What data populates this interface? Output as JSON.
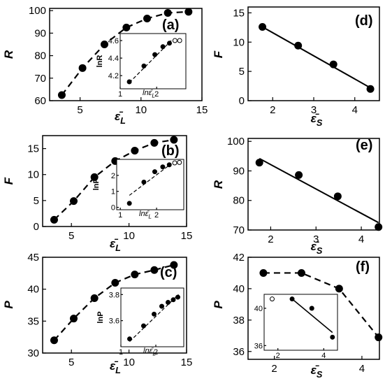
{
  "chart_data": [
    {
      "panel": "(a)",
      "type": "line",
      "xlabel": "ε̄_L",
      "ylabel": "R",
      "xlim": [
        2.5,
        15
      ],
      "ylim": [
        60,
        101
      ],
      "xticks": [
        5,
        10,
        15
      ],
      "yticks": [
        60,
        70,
        80,
        90,
        100
      ],
      "series": [
        {
          "style": "dashed-with-filled-markers",
          "x": [
            3.5,
            5.2,
            7.0,
            8.8,
            10.5,
            12.2,
            13.9
          ],
          "y": [
            62.5,
            74.5,
            85,
            92.5,
            96.5,
            99,
            99.5
          ]
        }
      ],
      "inset": {
        "type": "scatter",
        "xlabel": "lnε̄_L",
        "ylabel": "lnR",
        "xlim": [
          1,
          2.8
        ],
        "ylim": [
          4.05,
          4.68
        ],
        "xticks": [
          1,
          2
        ],
        "yticks": [
          4.2,
          4.4,
          4.6
        ],
        "points": [
          {
            "x": 1.25,
            "y": 4.13,
            "filled": true
          },
          {
            "x": 1.65,
            "y": 4.31,
            "filled": true
          },
          {
            "x": 1.95,
            "y": 4.44,
            "filled": true
          },
          {
            "x": 2.17,
            "y": 4.53,
            "filled": true
          },
          {
            "x": 2.35,
            "y": 4.57,
            "filled": true
          },
          {
            "x": 2.5,
            "y": 4.6,
            "filled": false
          },
          {
            "x": 2.63,
            "y": 4.6,
            "filled": false
          }
        ],
        "fit": {
          "style": "dashed",
          "x": [
            1.25,
            2.4
          ],
          "y": [
            4.12,
            4.6
          ]
        }
      }
    },
    {
      "panel": "(b)",
      "type": "line",
      "xlabel": "ε̄_L",
      "ylabel": "F",
      "xlim": [
        2.5,
        15
      ],
      "ylim": [
        0,
        17.5
      ],
      "xticks": [
        5,
        10,
        15
      ],
      "yticks": [
        0,
        5,
        10,
        15
      ],
      "series": [
        {
          "style": "dashed-with-filled-markers",
          "x": [
            3.5,
            5.2,
            7.0,
            8.8,
            10.5,
            12.2,
            13.9
          ],
          "y": [
            1.3,
            4.9,
            9.5,
            12.6,
            14.6,
            16.1,
            16.7
          ]
        }
      ],
      "inset": {
        "type": "scatter",
        "xlabel": "lnε̄_L",
        "ylabel": "lnF",
        "xlim": [
          0.9,
          2.75
        ],
        "ylim": [
          -0.15,
          3.0
        ],
        "xticks": [
          1,
          2
        ],
        "yticks": [
          0,
          1,
          2
        ],
        "points": [
          {
            "x": 1.25,
            "y": 0.25,
            "filled": true
          },
          {
            "x": 1.65,
            "y": 1.58,
            "filled": true
          },
          {
            "x": 1.95,
            "y": 2.23,
            "filled": true
          },
          {
            "x": 2.17,
            "y": 2.53,
            "filled": true
          },
          {
            "x": 2.35,
            "y": 2.66,
            "filled": true
          },
          {
            "x": 2.5,
            "y": 2.78,
            "filled": false
          },
          {
            "x": 2.63,
            "y": 2.81,
            "filled": false
          }
        ],
        "fit": {
          "style": "dashed",
          "x": [
            1.25,
            2.4
          ],
          "y": [
            0.75,
            2.72
          ]
        }
      }
    },
    {
      "panel": "(c)",
      "type": "line",
      "xlabel": "ε̄_L",
      "ylabel": "P",
      "xlim": [
        2.5,
        15
      ],
      "ylim": [
        30,
        45
      ],
      "xticks": [
        5,
        10,
        15
      ],
      "yticks": [
        30,
        35,
        40,
        45
      ],
      "series": [
        {
          "style": "dashed-with-filled-markers",
          "x": [
            3.5,
            5.2,
            7.0,
            8.8,
            10.5,
            12.2,
            13.9
          ],
          "y": [
            32.0,
            35.4,
            38.6,
            41.0,
            42.3,
            43.0,
            43.8
          ]
        }
      ],
      "inset": {
        "type": "scatter",
        "xlabel": "lnε̄_L",
        "ylabel": "lnP",
        "xlim": [
          1,
          2.8
        ],
        "ylim": [
          3.4,
          3.85
        ],
        "xticks": [
          1,
          2
        ],
        "yticks": [
          3.6,
          3.8
        ],
        "points": [
          {
            "x": 1.25,
            "y": 3.46,
            "filled": true
          },
          {
            "x": 1.65,
            "y": 3.56,
            "filled": true
          },
          {
            "x": 1.95,
            "y": 3.65,
            "filled": true
          },
          {
            "x": 2.17,
            "y": 3.71,
            "filled": true
          },
          {
            "x": 2.35,
            "y": 3.74,
            "filled": true
          },
          {
            "x": 2.5,
            "y": 3.76,
            "filled": true
          },
          {
            "x": 2.63,
            "y": 3.78,
            "filled": true
          }
        ],
        "fit": {
          "style": "dashed",
          "x": [
            1.25,
            2.65
          ],
          "y": [
            3.44,
            3.8
          ]
        }
      }
    },
    {
      "panel": "(d)",
      "type": "scatter",
      "xlabel": "ε̄_S",
      "ylabel": "F",
      "xlim": [
        1.4,
        4.6
      ],
      "ylim": [
        0,
        16
      ],
      "xticks": [
        2,
        3,
        4
      ],
      "yticks": [
        0,
        5,
        10,
        15
      ],
      "points": {
        "x": [
          1.75,
          2.62,
          3.48,
          4.38
        ],
        "y": [
          12.6,
          9.4,
          6.2,
          2.0
        ]
      },
      "fit": {
        "style": "solid",
        "x": [
          1.75,
          4.38
        ],
        "y": [
          12.6,
          2.2
        ]
      }
    },
    {
      "panel": "(e)",
      "type": "scatter",
      "xlabel": "ε̄_S",
      "ylabel": "R",
      "xlim": [
        1.5,
        4.4
      ],
      "ylim": [
        70,
        101
      ],
      "xticks": [
        2,
        3,
        4
      ],
      "yticks": [
        70,
        80,
        90,
        100
      ],
      "points": {
        "x": [
          1.75,
          2.62,
          3.48,
          4.38
        ],
        "y": [
          92.8,
          88.6,
          81.4,
          71.0
        ]
      },
      "fit": {
        "style": "solid",
        "x": [
          1.75,
          4.38
        ],
        "y": [
          94.2,
          72.5
        ]
      }
    },
    {
      "panel": "(f)",
      "type": "line",
      "xlabel": "ε̄_S",
      "ylabel": "P",
      "xlim": [
        1.4,
        4.4
      ],
      "ylim": [
        35.5,
        42
      ],
      "xticks": [
        2,
        4
      ],
      "yticks": [
        36,
        38,
        40,
        42
      ],
      "series": [
        {
          "style": "dashed-with-filled-markers",
          "x": [
            1.75,
            2.62,
            3.48,
            4.38
          ],
          "y": [
            41.0,
            41.0,
            40.0,
            36.9
          ]
        }
      ],
      "inset": {
        "type": "scatter",
        "xlabel": "",
        "ylabel": "",
        "xlim": [
          1.4,
          4.6
        ],
        "ylim": [
          35.5,
          41.5
        ],
        "xticks": [
          2,
          4
        ],
        "yticks": [
          36,
          40
        ],
        "points": [
          {
            "x": 1.75,
            "y": 41.0,
            "filled": false
          },
          {
            "x": 2.62,
            "y": 41.0,
            "filled": true
          },
          {
            "x": 3.48,
            "y": 40.0,
            "filled": true
          },
          {
            "x": 4.38,
            "y": 36.9,
            "filled": true
          }
        ],
        "fit": {
          "style": "solid",
          "x": [
            2.62,
            4.38
          ],
          "y": [
            41.0,
            37.4
          ]
        }
      }
    }
  ]
}
